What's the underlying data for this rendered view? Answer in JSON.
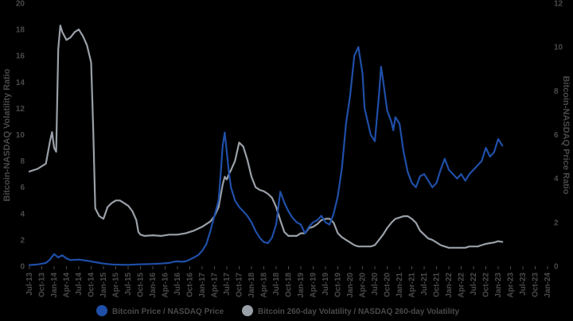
{
  "chart_data": {
    "type": "line",
    "title": "",
    "x_tick_labels": [
      "Jul-13",
      "Oct-13",
      "Jan-14",
      "Apr-14",
      "Jul-14",
      "Oct-14",
      "Jan-15",
      "Apr-15",
      "Jul-15",
      "Oct-15",
      "Jan-16",
      "Apr-16",
      "Jul-16",
      "Oct-16",
      "Jan-17",
      "Apr-17",
      "Jul-17",
      "Oct-17",
      "Jan-18",
      "Apr-18",
      "Jul-18",
      "Oct-18",
      "Jan-19",
      "Apr-19",
      "Jul-19",
      "Oct-19",
      "Jan-20",
      "Apr-20",
      "Jul-20",
      "Oct-20",
      "Jan-21",
      "Apr-21",
      "Jul-21",
      "Oct-21",
      "Jan-22",
      "Apr-22",
      "Jul-22",
      "Oct-22",
      "Jan-23",
      "Apr-23",
      "Jul-23",
      "Oct-23",
      "Jan-24"
    ],
    "y_left": {
      "label": "Bitcoin-NASDAQ Volatility Ratio",
      "min": 0,
      "max": 20,
      "ticks": [
        0,
        2,
        4,
        6,
        8,
        10,
        12,
        14,
        16,
        18,
        20
      ]
    },
    "y_right": {
      "label": "Bitcoin-NASDAQ Price Ratio",
      "min": 0,
      "max": 12,
      "ticks": [
        0,
        2,
        4,
        6,
        8,
        10,
        12
      ]
    },
    "grid": false,
    "legend_position": "bottom",
    "series": [
      {
        "name": "Bitcoin Price / NASDAQ Price",
        "axis": "right",
        "color": "#1f4fa8",
        "points": [
          [
            0,
            0.05
          ],
          [
            2,
            0.08
          ],
          [
            4,
            0.15
          ],
          [
            5,
            0.3
          ],
          [
            6,
            0.55
          ],
          [
            7,
            0.4
          ],
          [
            8,
            0.5
          ],
          [
            9,
            0.35
          ],
          [
            10,
            0.28
          ],
          [
            12,
            0.3
          ],
          [
            14,
            0.25
          ],
          [
            16,
            0.18
          ],
          [
            18,
            0.12
          ],
          [
            20,
            0.08
          ],
          [
            22,
            0.07
          ],
          [
            24,
            0.06
          ],
          [
            26,
            0.08
          ],
          [
            28,
            0.09
          ],
          [
            30,
            0.1
          ],
          [
            32,
            0.12
          ],
          [
            34,
            0.15
          ],
          [
            35,
            0.2
          ],
          [
            36,
            0.22
          ],
          [
            37,
            0.2
          ],
          [
            38,
            0.22
          ],
          [
            39,
            0.3
          ],
          [
            40,
            0.4
          ],
          [
            41,
            0.5
          ],
          [
            42,
            0.7
          ],
          [
            43,
            1.0
          ],
          [
            44,
            1.6
          ],
          [
            45,
            2.3
          ],
          [
            46,
            3.0
          ],
          [
            46.5,
            4.2
          ],
          [
            47,
            5.5
          ],
          [
            47.5,
            6.1
          ],
          [
            48,
            5.2
          ],
          [
            48.5,
            4.3
          ],
          [
            49,
            3.6
          ],
          [
            50,
            3.0
          ],
          [
            51,
            2.7
          ],
          [
            52,
            2.5
          ],
          [
            53,
            2.3
          ],
          [
            54,
            2.0
          ],
          [
            55,
            1.6
          ],
          [
            56,
            1.3
          ],
          [
            57,
            1.1
          ],
          [
            58,
            1.05
          ],
          [
            59,
            1.3
          ],
          [
            60,
            1.9
          ],
          [
            61,
            3.4
          ],
          [
            62,
            2.9
          ],
          [
            63,
            2.5
          ],
          [
            64,
            2.2
          ],
          [
            65,
            2.0
          ],
          [
            66,
            1.9
          ],
          [
            67,
            1.5
          ],
          [
            68,
            1.8
          ],
          [
            69,
            2.0
          ],
          [
            70,
            2.1
          ],
          [
            71,
            2.3
          ],
          [
            72,
            2.0
          ],
          [
            73,
            1.9
          ],
          [
            74,
            2.4
          ],
          [
            75,
            3.2
          ],
          [
            76,
            4.5
          ],
          [
            77,
            6.5
          ],
          [
            78,
            7.8
          ],
          [
            79,
            9.6
          ],
          [
            80,
            10.0
          ],
          [
            81,
            8.8
          ],
          [
            81.5,
            7.2
          ],
          [
            82,
            6.8
          ],
          [
            83,
            6.0
          ],
          [
            84,
            5.7
          ],
          [
            85,
            7.8
          ],
          [
            85.5,
            9.1
          ],
          [
            86,
            8.5
          ],
          [
            87,
            7.1
          ],
          [
            88,
            6.6
          ],
          [
            88.5,
            6.2
          ],
          [
            89,
            6.8
          ],
          [
            90,
            6.5
          ],
          [
            91,
            5.2
          ],
          [
            92,
            4.3
          ],
          [
            93,
            3.8
          ],
          [
            94,
            3.6
          ],
          [
            95,
            4.1
          ],
          [
            96,
            4.2
          ],
          [
            97,
            3.9
          ],
          [
            98,
            3.6
          ],
          [
            99,
            3.8
          ],
          [
            100,
            4.4
          ],
          [
            101,
            4.9
          ],
          [
            102,
            4.4
          ],
          [
            103,
            4.2
          ],
          [
            104,
            4.0
          ],
          [
            105,
            4.2
          ],
          [
            106,
            3.9
          ],
          [
            107,
            4.2
          ],
          [
            108,
            4.4
          ],
          [
            109,
            4.6
          ],
          [
            110,
            4.8
          ],
          [
            111,
            5.4
          ],
          [
            112,
            5.0
          ],
          [
            113,
            5.2
          ],
          [
            114,
            5.8
          ],
          [
            115,
            5.5
          ]
        ]
      },
      {
        "name": "Bitcoin 260-day Volatility /  NASDAQ 260-day Volatility",
        "axis": "left",
        "color": "#9aa0a8",
        "points": [
          [
            0,
            7.2
          ],
          [
            2,
            7.4
          ],
          [
            4,
            7.8
          ],
          [
            5,
            9.5
          ],
          [
            5.5,
            10.2
          ],
          [
            6,
            9.0
          ],
          [
            6.5,
            8.7
          ],
          [
            7,
            16.5
          ],
          [
            7.5,
            18.3
          ],
          [
            8,
            17.8
          ],
          [
            9,
            17.2
          ],
          [
            10,
            17.4
          ],
          [
            11,
            17.8
          ],
          [
            12,
            18.0
          ],
          [
            13,
            17.5
          ],
          [
            14,
            16.8
          ],
          [
            15,
            15.5
          ],
          [
            15.5,
            10.5
          ],
          [
            16,
            4.4
          ],
          [
            17,
            3.8
          ],
          [
            18,
            3.6
          ],
          [
            19,
            4.5
          ],
          [
            20,
            4.8
          ],
          [
            21,
            5.0
          ],
          [
            22,
            5.0
          ],
          [
            23,
            4.8
          ],
          [
            24,
            4.6
          ],
          [
            25,
            4.2
          ],
          [
            26,
            3.5
          ],
          [
            26.5,
            2.6
          ],
          [
            27,
            2.4
          ],
          [
            28,
            2.3
          ],
          [
            30,
            2.35
          ],
          [
            32,
            2.3
          ],
          [
            34,
            2.4
          ],
          [
            36,
            2.4
          ],
          [
            38,
            2.5
          ],
          [
            40,
            2.7
          ],
          [
            42,
            3.0
          ],
          [
            44,
            3.4
          ],
          [
            45,
            3.8
          ],
          [
            46,
            4.5
          ],
          [
            47,
            6.2
          ],
          [
            47.5,
            6.8
          ],
          [
            48,
            6.6
          ],
          [
            48.5,
            7.0
          ],
          [
            49,
            7.3
          ],
          [
            50,
            8.0
          ],
          [
            51,
            9.4
          ],
          [
            52,
            9.1
          ],
          [
            53,
            8.1
          ],
          [
            54,
            6.8
          ],
          [
            55,
            6.0
          ],
          [
            56,
            5.8
          ],
          [
            57,
            5.7
          ],
          [
            58,
            5.5
          ],
          [
            59,
            5.2
          ],
          [
            60,
            4.5
          ],
          [
            61,
            3.5
          ],
          [
            62,
            2.6
          ],
          [
            63,
            2.3
          ],
          [
            64,
            2.3
          ],
          [
            65,
            2.3
          ],
          [
            66,
            2.5
          ],
          [
            67,
            2.5
          ],
          [
            68,
            2.9
          ],
          [
            69,
            3.0
          ],
          [
            70,
            3.2
          ],
          [
            71,
            3.5
          ],
          [
            72,
            3.6
          ],
          [
            73,
            3.6
          ],
          [
            74,
            3.3
          ],
          [
            75,
            2.5
          ],
          [
            76,
            2.2
          ],
          [
            77,
            2.0
          ],
          [
            78,
            1.8
          ],
          [
            79,
            1.6
          ],
          [
            80,
            1.5
          ],
          [
            81,
            1.5
          ],
          [
            82,
            1.5
          ],
          [
            83,
            1.5
          ],
          [
            84,
            1.6
          ],
          [
            85,
            2.0
          ],
          [
            86,
            2.4
          ],
          [
            87,
            2.9
          ],
          [
            88,
            3.3
          ],
          [
            89,
            3.6
          ],
          [
            90,
            3.7
          ],
          [
            91,
            3.8
          ],
          [
            92,
            3.8
          ],
          [
            93,
            3.6
          ],
          [
            94,
            3.3
          ],
          [
            95,
            2.7
          ],
          [
            96,
            2.4
          ],
          [
            97,
            2.1
          ],
          [
            98,
            2.0
          ],
          [
            99,
            1.8
          ],
          [
            100,
            1.6
          ],
          [
            101,
            1.5
          ],
          [
            102,
            1.4
          ],
          [
            103,
            1.4
          ],
          [
            104,
            1.4
          ],
          [
            105,
            1.4
          ],
          [
            106,
            1.4
          ],
          [
            107,
            1.5
          ],
          [
            108,
            1.5
          ],
          [
            109,
            1.5
          ],
          [
            110,
            1.6
          ],
          [
            111,
            1.7
          ],
          [
            112,
            1.75
          ],
          [
            113,
            1.8
          ],
          [
            114,
            1.9
          ],
          [
            115,
            1.85
          ]
        ]
      }
    ]
  }
}
